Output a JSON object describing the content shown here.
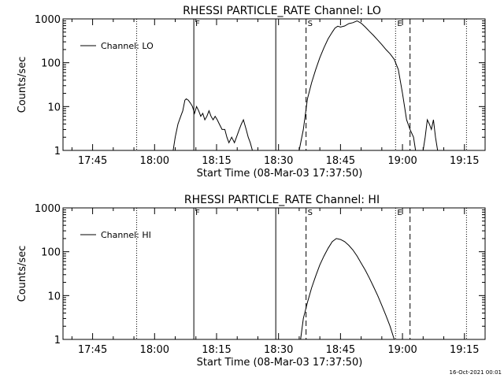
{
  "footer": {
    "timestamp": "16-Oct-2021 00:01"
  },
  "chart_data": [
    {
      "type": "line",
      "title": "RHESSI PARTICLE_RATE Channel: LO",
      "xlabel": "Start Time (08-Mar-03 17:37:50)",
      "ylabel": "Counts/sec",
      "y_scale": "log",
      "ylim": [
        1,
        1000
      ],
      "xlim": [
        "17:37:50",
        "19:20:00"
      ],
      "x_ticks": [
        "17:45",
        "18:00",
        "18:15",
        "18:30",
        "18:45",
        "19:00",
        "19:15"
      ],
      "y_ticks": [
        "1",
        "10",
        "100",
        "1000"
      ],
      "legend": {
        "placement": "top-left",
        "entries": [
          "Channel: LO"
        ]
      },
      "markers": [
        {
          "time": "17:55:40",
          "style": "dotted",
          "label": ""
        },
        {
          "time": "18:09:30",
          "style": "solid",
          "label": "F"
        },
        {
          "time": "18:29:20",
          "style": "solid",
          "label": ""
        },
        {
          "time": "18:36:40",
          "style": "dashed",
          "label": "S"
        },
        {
          "time": "18:58:20",
          "style": "dotted",
          "label": "E"
        },
        {
          "time": "19:01:50",
          "style": "dashed",
          "label": ""
        },
        {
          "time": "19:15:30",
          "style": "dotted",
          "label": ""
        }
      ],
      "series": [
        {
          "name": "Channel: LO",
          "segments": [
            {
              "x": [
                "18:04:30",
                "18:05:00",
                "18:05:40",
                "18:06:20",
                "18:06:50",
                "18:07:20",
                "18:07:40",
                "18:08:10",
                "18:08:40",
                "18:09:10",
                "18:09:40",
                "18:10:10",
                "18:10:40",
                "18:11:10",
                "18:11:40",
                "18:12:10",
                "18:12:40",
                "18:13:10",
                "18:13:40",
                "18:14:10",
                "18:14:40",
                "18:15:10",
                "18:15:40",
                "18:16:20",
                "18:17:00",
                "18:17:30",
                "18:18:00",
                "18:18:40",
                "18:19:20",
                "18:19:50",
                "18:20:30",
                "18:21:00",
                "18:21:30",
                "18:22:10",
                "18:22:40",
                "18:23:10",
                "18:23:40"
              ],
              "y": [
                1,
                2,
                4,
                6,
                8,
                14,
                15,
                14,
                12,
                10,
                7,
                10,
                8,
                6,
                7,
                5,
                6,
                8,
                6,
                5,
                6,
                5,
                4,
                3,
                3,
                2,
                1.5,
                2,
                1.5,
                2,
                3,
                4,
                5,
                3,
                2,
                1.5,
                1
              ]
            },
            {
              "x": [
                "18:35:00",
                "18:36:00",
                "18:37:00",
                "18:38:00",
                "18:39:00",
                "18:40:00",
                "18:41:00",
                "18:42:00",
                "18:43:00",
                "18:43:40",
                "18:44:20",
                "18:45:00",
                "18:46:00",
                "18:47:00",
                "18:48:00",
                "18:49:00",
                "18:50:00",
                "18:51:00",
                "18:52:00",
                "18:53:00",
                "18:54:00",
                "18:55:00",
                "18:56:00",
                "18:57:00",
                "18:58:00",
                "18:59:00",
                "19:00:00",
                "19:01:00",
                "19:01:50",
                "19:02:40",
                "19:03:10"
              ],
              "y": [
                1,
                3,
                15,
                35,
                70,
                130,
                220,
                350,
                500,
                620,
                680,
                650,
                690,
                780,
                820,
                900,
                800,
                650,
                520,
                420,
                330,
                260,
                200,
                160,
                120,
                70,
                20,
                5,
                3,
                2,
                1
              ]
            },
            {
              "x": [
                "19:05:00",
                "19:05:30",
                "19:06:00",
                "19:06:30",
                "19:07:00",
                "19:07:30",
                "19:08:00",
                "19:08:30"
              ],
              "y": [
                1,
                2,
                5,
                4,
                3,
                5,
                2,
                1
              ]
            }
          ]
        }
      ]
    },
    {
      "type": "line",
      "title": "RHESSI PARTICLE_RATE Channel: HI",
      "xlabel": "Start Time (08-Mar-03 17:37:50)",
      "ylabel": "Counts/sec",
      "y_scale": "log",
      "ylim": [
        1,
        1000
      ],
      "xlim": [
        "17:37:50",
        "19:20:00"
      ],
      "x_ticks": [
        "17:45",
        "18:00",
        "18:15",
        "18:30",
        "18:45",
        "19:00",
        "19:15"
      ],
      "y_ticks": [
        "1",
        "10",
        "100",
        "1000"
      ],
      "legend": {
        "placement": "top-left",
        "entries": [
          "Channel: HI"
        ]
      },
      "markers": [
        {
          "time": "17:55:40",
          "style": "dotted",
          "label": ""
        },
        {
          "time": "18:09:30",
          "style": "solid",
          "label": "F"
        },
        {
          "time": "18:29:20",
          "style": "solid",
          "label": ""
        },
        {
          "time": "18:36:40",
          "style": "dashed",
          "label": "S"
        },
        {
          "time": "18:58:20",
          "style": "dotted",
          "label": "E"
        },
        {
          "time": "19:01:50",
          "style": "dashed",
          "label": ""
        },
        {
          "time": "19:15:30",
          "style": "dotted",
          "label": ""
        }
      ],
      "series": [
        {
          "name": "Channel: HI",
          "segments": [
            {
              "x": [
                "18:35:20",
                "18:36:00",
                "18:37:00",
                "18:38:00",
                "18:39:00",
                "18:40:00",
                "18:41:00",
                "18:42:00",
                "18:43:00",
                "18:44:00",
                "18:45:00",
                "18:46:00",
                "18:47:00",
                "18:48:00",
                "18:49:00",
                "18:50:00",
                "18:51:00",
                "18:52:00",
                "18:53:00",
                "18:54:00",
                "18:55:00",
                "18:56:00",
                "18:57:00",
                "18:58:00"
              ],
              "y": [
                1,
                3,
                7,
                15,
                28,
                50,
                80,
                120,
                170,
                200,
                190,
                170,
                140,
                110,
                80,
                55,
                38,
                25,
                16,
                10,
                6,
                3.5,
                2,
                1
              ]
            }
          ]
        }
      ]
    }
  ]
}
